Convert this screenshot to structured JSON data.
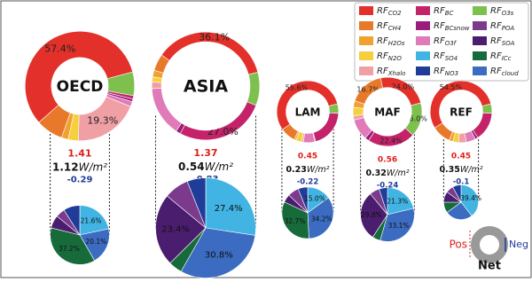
{
  "chart_data": {
    "type": "donut-pie",
    "unit": "W/m²",
    "legend": [
      {
        "label": "RF",
        "sub": "CO2",
        "color": "#e3302a"
      },
      {
        "label": "RF",
        "sub": "CH4",
        "color": "#e8792a"
      },
      {
        "label": "RF",
        "sub": "H2Os",
        "color": "#f0a22e"
      },
      {
        "label": "RF",
        "sub": "N2O",
        "color": "#f5cf3e"
      },
      {
        "label": "RF",
        "sub": "Xhalo",
        "color": "#f0a0a4"
      },
      {
        "label": "RF",
        "sub": "BC",
        "color": "#c42369"
      },
      {
        "label": "RF",
        "sub": "BCsnow",
        "color": "#9c1c7c"
      },
      {
        "label": "RF",
        "sub": "O3f",
        "color": "#e07ab8"
      },
      {
        "label": "RF",
        "sub": "SO4",
        "color": "#41b4e3"
      },
      {
        "label": "RF",
        "sub": "NO3",
        "color": "#1f3c98"
      },
      {
        "label": "RF",
        "sub": "O3s",
        "color": "#7dc04e"
      },
      {
        "label": "RF",
        "sub": "POA",
        "color": "#7b3a8c"
      },
      {
        "label": "RF",
        "sub": "SOA",
        "color": "#4a1d6e"
      },
      {
        "label": "RF",
        "sub": "ICc",
        "color": "#176b3a"
      },
      {
        "label": "RF",
        "sub": "cloud",
        "color": "#3b6cc2"
      }
    ],
    "regions": [
      {
        "name": "OECD",
        "positive": 1.41,
        "net": 1.12,
        "negative": -0.29,
        "donut": {
          "values": [
            57.4,
            8,
            2,
            3,
            19.3,
            1,
            0.8,
            1.5,
            null,
            null,
            7,
            null,
            null,
            null,
            null
          ],
          "value_labels": [
            "57.4%",
            null,
            null,
            null,
            "19.3%",
            null,
            null,
            null,
            null,
            null,
            null,
            null,
            null,
            null,
            null
          ]
        },
        "pie": {
          "values": [
            null,
            null,
            null,
            null,
            null,
            null,
            null,
            null,
            21.6,
            9,
            null,
            5,
            7.1,
            37.2,
            20.1
          ],
          "value_labels": [
            null,
            null,
            null,
            null,
            null,
            null,
            null,
            null,
            "21.6%",
            null,
            null,
            null,
            null,
            "37.2%",
            "20.1%"
          ]
        }
      },
      {
        "name": "ASIA",
        "positive": 1.37,
        "net": 0.54,
        "negative": -0.83,
        "donut": {
          "values": [
            36.1,
            5,
            2,
            1.5,
            2,
            27.0,
            1.4,
            15,
            null,
            null,
            10,
            null,
            null,
            null,
            null
          ],
          "value_labels": [
            "36.1%",
            null,
            null,
            null,
            null,
            "27.0%",
            null,
            null,
            null,
            null,
            null,
            null,
            null,
            null,
            null
          ]
        },
        "pie": {
          "values": [
            null,
            null,
            null,
            null,
            null,
            null,
            null,
            null,
            27.4,
            6,
            null,
            8,
            23.4,
            4.4,
            30.8
          ],
          "value_labels": [
            null,
            null,
            null,
            null,
            null,
            null,
            null,
            null,
            "27.4%",
            null,
            null,
            null,
            "23.4%",
            null,
            "30.8%"
          ]
        }
      },
      {
        "name": "LAM",
        "positive": 0.45,
        "net": 0.23,
        "negative": -0.22,
        "donut": {
          "values": [
            55.6,
            8,
            1,
            3,
            1,
            20,
            0.4,
            6,
            null,
            null,
            5,
            null,
            null,
            null,
            null
          ],
          "value_labels": [
            "55.6%",
            null,
            null,
            null,
            null,
            null,
            null,
            null,
            null,
            null,
            null,
            null,
            null,
            null,
            null
          ]
        },
        "pie": {
          "values": [
            null,
            null,
            null,
            null,
            null,
            null,
            null,
            null,
            15.0,
            6,
            null,
            7,
            5.1,
            32.7,
            34.2
          ],
          "value_labels": [
            null,
            null,
            null,
            null,
            null,
            null,
            null,
            null,
            "15.0%",
            null,
            null,
            null,
            null,
            "32.7%",
            "34.2%"
          ]
        }
      },
      {
        "name": "MAF",
        "positive": 0.56,
        "net": 0.32,
        "negative": -0.24,
        "donut": {
          "values": [
            24.0,
            16.7,
            3,
            4,
            2,
            22.4,
            1.9,
            10,
            null,
            null,
            16.0,
            null,
            null,
            null,
            null
          ],
          "value_labels": [
            "24.0%",
            "16.7%",
            null,
            null,
            null,
            "22.4%",
            null,
            null,
            null,
            null,
            "16.0%",
            null,
            null,
            null,
            null
          ]
        },
        "pie": {
          "values": [
            null,
            null,
            null,
            null,
            null,
            null,
            null,
            null,
            21.3,
            5,
            null,
            6,
            29.8,
            4.8,
            33.1
          ],
          "value_labels": [
            null,
            null,
            null,
            null,
            null,
            null,
            null,
            null,
            "21.3%",
            null,
            null,
            null,
            "29.8%",
            null,
            "33.1%"
          ]
        }
      },
      {
        "name": "REF",
        "positive": 0.45,
        "net": 0.35,
        "negative": -0.1,
        "donut": {
          "values": [
            54.5,
            10,
            2,
            3,
            4,
            15,
            1.5,
            5,
            null,
            null,
            5,
            null,
            null,
            null,
            null
          ],
          "value_labels": [
            "54.5%",
            null,
            null,
            null,
            null,
            null,
            null,
            null,
            null,
            null,
            null,
            null,
            null,
            null,
            null
          ]
        },
        "pie": {
          "values": [
            null,
            null,
            null,
            null,
            null,
            null,
            null,
            null,
            39.4,
            8,
            null,
            7,
            10,
            10,
            25.6
          ],
          "value_labels": [
            null,
            null,
            null,
            null,
            null,
            null,
            null,
            null,
            "39.4%",
            null,
            null,
            null,
            null,
            null,
            null
          ]
        }
      }
    ],
    "key": {
      "pos": "Pos",
      "neg": "Neg",
      "net": "Net"
    }
  }
}
